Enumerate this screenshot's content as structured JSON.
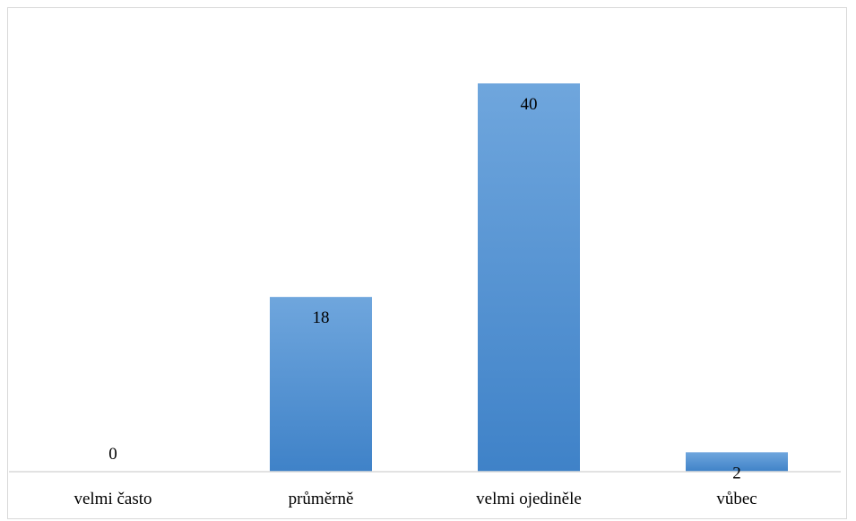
{
  "chart_data": {
    "type": "bar",
    "categories": [
      "velmi často",
      "průměrně",
      "velmi ojediněle",
      "vůbec"
    ],
    "values": [
      0,
      18,
      40,
      2
    ],
    "title": "",
    "xlabel": "",
    "ylabel": "",
    "ylim": [
      0,
      40
    ],
    "grid": false,
    "legend": "none",
    "data_labels": [
      "0",
      "18",
      "40",
      "2"
    ]
  },
  "colors": {
    "bar_top": "#6fa6dd",
    "bar_bottom": "#3f82c8",
    "axis": "#d9d9d9"
  }
}
